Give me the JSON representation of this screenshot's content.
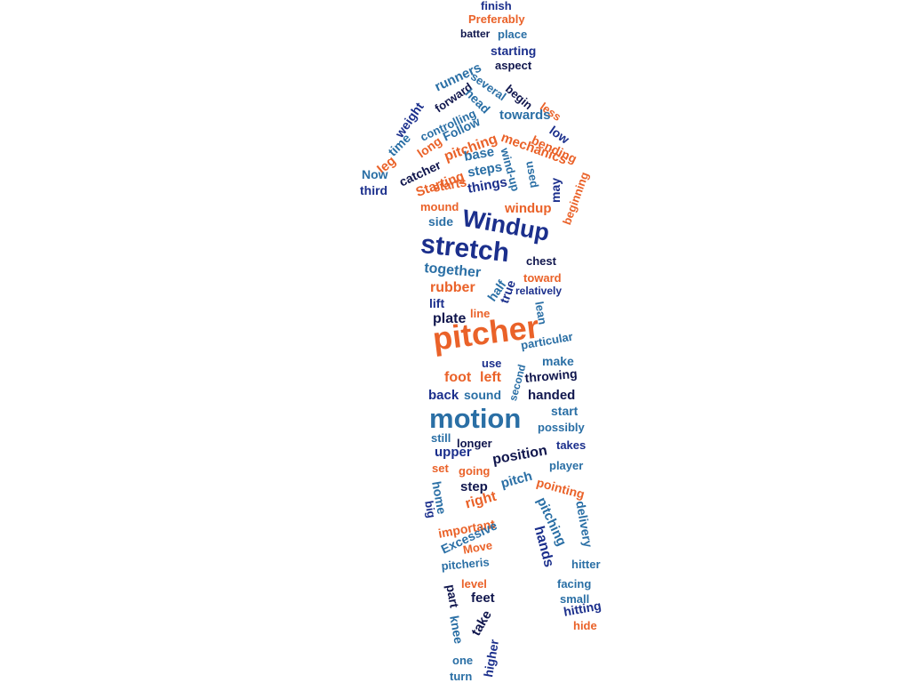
{
  "palette": {
    "navy": "#1b2f8c",
    "teal": "#2a6fa5",
    "orange": "#ea6229",
    "dark": "#10164d"
  },
  "words": [
    {
      "text": "finish",
      "color": "navy"
    },
    {
      "text": "Preferably",
      "color": "orange"
    },
    {
      "text": "batter",
      "color": "dark"
    },
    {
      "text": "place",
      "color": "teal"
    },
    {
      "text": "starting",
      "color": "navy"
    },
    {
      "text": "aspect",
      "color": "dark"
    },
    {
      "text": "runners",
      "color": "teal"
    },
    {
      "text": "several",
      "color": "teal"
    },
    {
      "text": "forward",
      "color": "dark"
    },
    {
      "text": "head",
      "color": "teal"
    },
    {
      "text": "begin",
      "color": "dark"
    },
    {
      "text": "weight",
      "color": "navy"
    },
    {
      "text": "controlling",
      "color": "teal"
    },
    {
      "text": "less",
      "color": "orange"
    },
    {
      "text": "Follow",
      "color": "teal"
    },
    {
      "text": "towards",
      "color": "teal"
    },
    {
      "text": "low",
      "color": "navy"
    },
    {
      "text": "time",
      "color": "teal"
    },
    {
      "text": "long",
      "color": "orange"
    },
    {
      "text": "pitching",
      "color": "orange"
    },
    {
      "text": "mechanics",
      "color": "orange"
    },
    {
      "text": "bending",
      "color": "orange"
    },
    {
      "text": "leg",
      "color": "orange"
    },
    {
      "text": "catcher",
      "color": "dark"
    },
    {
      "text": "base",
      "color": "teal"
    },
    {
      "text": "Starting",
      "color": "orange"
    },
    {
      "text": "wind-up",
      "color": "teal"
    },
    {
      "text": "used",
      "color": "teal"
    },
    {
      "text": "Now",
      "color": "teal"
    },
    {
      "text": "steps",
      "color": "teal"
    },
    {
      "text": "starts",
      "color": "orange"
    },
    {
      "text": "things",
      "color": "navy"
    },
    {
      "text": "may",
      "color": "navy"
    },
    {
      "text": "beginning",
      "color": "orange"
    },
    {
      "text": "third",
      "color": "navy"
    },
    {
      "text": "mound",
      "color": "orange"
    },
    {
      "text": "windup",
      "color": "orange"
    },
    {
      "text": "side",
      "color": "teal"
    },
    {
      "text": "Windup",
      "color": "navy"
    },
    {
      "text": "stretch",
      "color": "navy"
    },
    {
      "text": "chest",
      "color": "dark"
    },
    {
      "text": "together",
      "color": "teal"
    },
    {
      "text": "toward",
      "color": "orange"
    },
    {
      "text": "rubber",
      "color": "orange"
    },
    {
      "text": "half",
      "color": "teal"
    },
    {
      "text": "true",
      "color": "navy"
    },
    {
      "text": "relatively",
      "color": "navy"
    },
    {
      "text": "lift",
      "color": "navy"
    },
    {
      "text": "plate",
      "color": "dark"
    },
    {
      "text": "line",
      "color": "orange"
    },
    {
      "text": "lean",
      "color": "teal"
    },
    {
      "text": "pitcher",
      "color": "orange"
    },
    {
      "text": "particular",
      "color": "teal"
    },
    {
      "text": "use",
      "color": "navy"
    },
    {
      "text": "make",
      "color": "teal"
    },
    {
      "text": "foot",
      "color": "orange"
    },
    {
      "text": "left",
      "color": "orange"
    },
    {
      "text": "second",
      "color": "teal"
    },
    {
      "text": "throwing",
      "color": "dark"
    },
    {
      "text": "back",
      "color": "navy"
    },
    {
      "text": "sound",
      "color": "teal"
    },
    {
      "text": "handed",
      "color": "dark"
    },
    {
      "text": "motion",
      "color": "teal"
    },
    {
      "text": "start",
      "color": "teal"
    },
    {
      "text": "possibly",
      "color": "teal"
    },
    {
      "text": "still",
      "color": "teal"
    },
    {
      "text": "longer",
      "color": "dark"
    },
    {
      "text": "takes",
      "color": "navy"
    },
    {
      "text": "upper",
      "color": "navy"
    },
    {
      "text": "position",
      "color": "dark"
    },
    {
      "text": "set",
      "color": "orange"
    },
    {
      "text": "going",
      "color": "orange"
    },
    {
      "text": "player",
      "color": "teal"
    },
    {
      "text": "step",
      "color": "dark"
    },
    {
      "text": "pitch",
      "color": "teal"
    },
    {
      "text": "pointing",
      "color": "orange"
    },
    {
      "text": "home",
      "color": "teal"
    },
    {
      "text": "big",
      "color": "navy"
    },
    {
      "text": "right",
      "color": "orange"
    },
    {
      "text": "pitching",
      "color": "teal"
    },
    {
      "text": "delivery",
      "color": "teal"
    },
    {
      "text": "important",
      "color": "orange"
    },
    {
      "text": "Excessive",
      "color": "teal"
    },
    {
      "text": "hands",
      "color": "navy"
    },
    {
      "text": "Move",
      "color": "orange"
    },
    {
      "text": "hitter",
      "color": "teal"
    },
    {
      "text": "pitcheris",
      "color": "teal"
    },
    {
      "text": "level",
      "color": "orange"
    },
    {
      "text": "facing",
      "color": "teal"
    },
    {
      "text": "part",
      "color": "dark"
    },
    {
      "text": "feet",
      "color": "dark"
    },
    {
      "text": "small",
      "color": "teal"
    },
    {
      "text": "hitting",
      "color": "navy"
    },
    {
      "text": "knee",
      "color": "teal"
    },
    {
      "text": "take",
      "color": "dark"
    },
    {
      "text": "hide",
      "color": "orange"
    },
    {
      "text": "one",
      "color": "teal"
    },
    {
      "text": "higher",
      "color": "navy"
    },
    {
      "text": "turn",
      "color": "teal"
    }
  ]
}
